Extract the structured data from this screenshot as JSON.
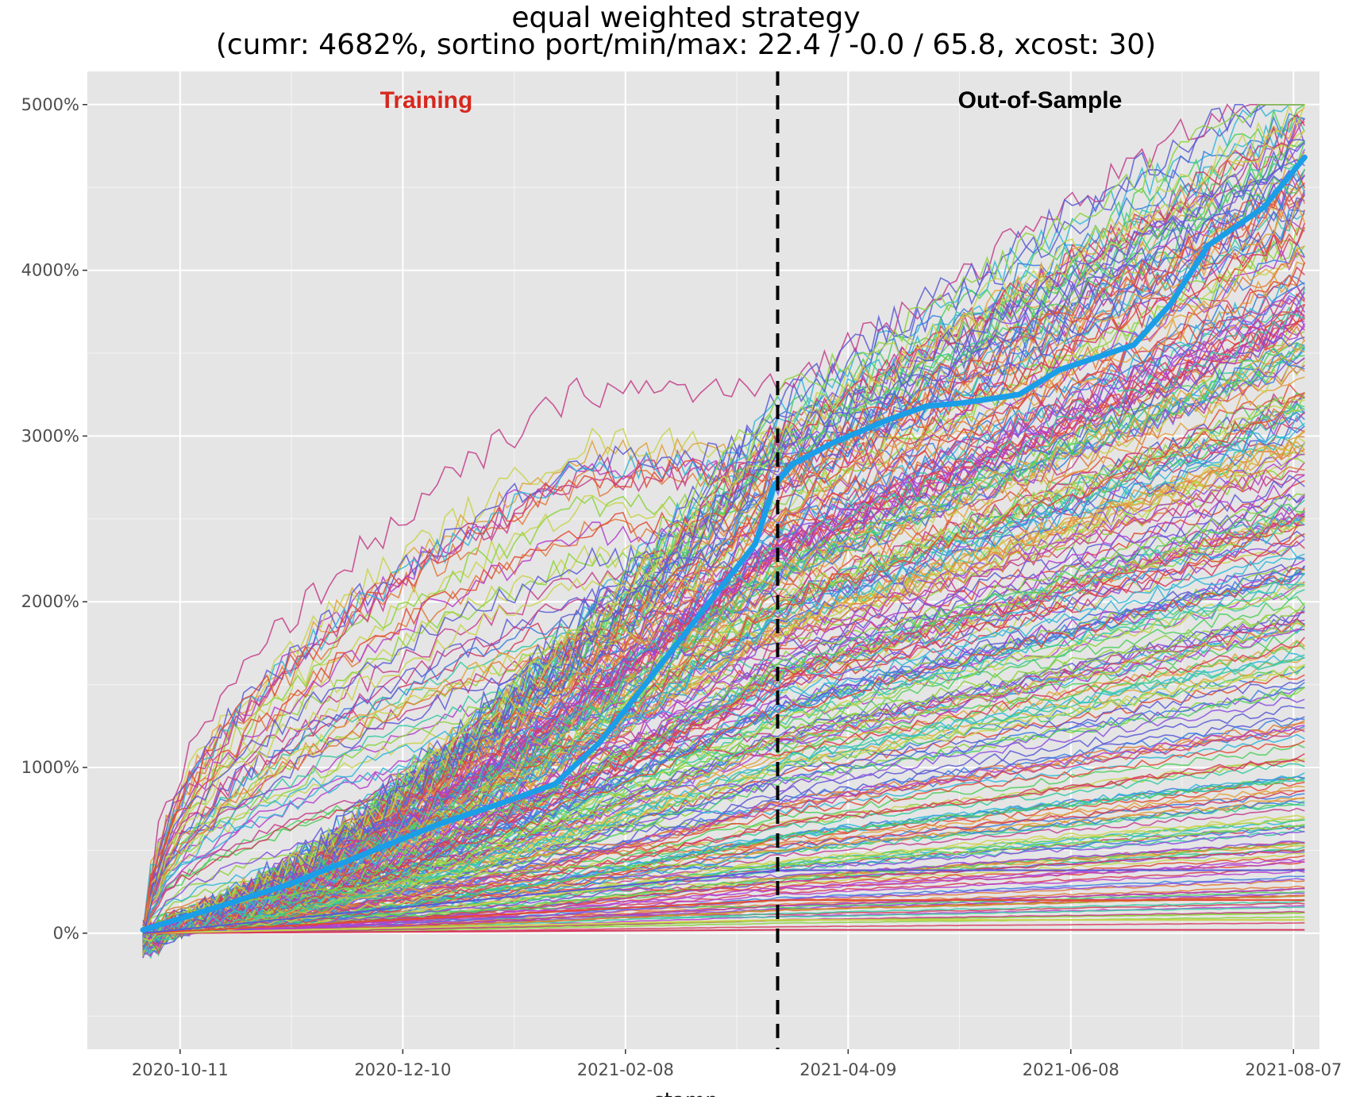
{
  "chart_data": {
    "type": "line",
    "title": "equal weighted strategy",
    "subtitle": "(cumr: 4682%, sortino port/min/max: 22.4 / -0.0 / 65.8, xcost: 30)",
    "xlabel": "stamp",
    "ylabel": "",
    "x_ticks": [
      "2020-10-11",
      "2020-12-10",
      "2021-02-08",
      "2021-04-09",
      "2021-06-08",
      "2021-08-07"
    ],
    "y_ticks": [
      "0%",
      "1000%",
      "2000%",
      "3000%",
      "4000%",
      "5000%"
    ],
    "ylim": [
      -700,
      5200
    ],
    "xlim": [
      "2020-09-16",
      "2021-08-14"
    ],
    "grid": true,
    "background": "#e5e5e5",
    "grid_color": "#ffffff",
    "split_date": "2021-03-21",
    "annotations": {
      "training": {
        "text": "Training",
        "color": "#d7281e"
      },
      "out_of_sample": {
        "text": "Out-of-Sample",
        "color": "#000000"
      }
    },
    "portfolio_series": {
      "color": "#1a9ee8",
      "points": [
        [
          "2020-10-01",
          20
        ],
        [
          "2020-10-20",
          150
        ],
        [
          "2020-11-10",
          300
        ],
        [
          "2020-11-30",
          480
        ],
        [
          "2020-12-20",
          660
        ],
        [
          "2021-01-05",
          780
        ],
        [
          "2021-01-20",
          900
        ],
        [
          "2021-02-01",
          1150
        ],
        [
          "2021-02-15",
          1550
        ],
        [
          "2021-03-01",
          1950
        ],
        [
          "2021-03-15",
          2350
        ],
        [
          "2021-03-20",
          2700
        ],
        [
          "2021-03-25",
          2830
        ],
        [
          "2021-04-05",
          2960
        ],
        [
          "2021-04-20",
          3100
        ],
        [
          "2021-04-30",
          3180
        ],
        [
          "2021-05-10",
          3200
        ],
        [
          "2021-05-25",
          3250
        ],
        [
          "2021-06-05",
          3400
        ],
        [
          "2021-06-25",
          3550
        ],
        [
          "2021-07-05",
          3800
        ],
        [
          "2021-07-15",
          4150
        ],
        [
          "2021-07-30",
          4380
        ],
        [
          "2021-08-10",
          4682
        ]
      ]
    },
    "individual_series_count": 320,
    "series_palette": [
      "#e24a33",
      "#d63a5c",
      "#c43d8a",
      "#b53ecf",
      "#8a4fe0",
      "#5b5bd6",
      "#3a7fe0",
      "#2fb7d8",
      "#34c9a0",
      "#4ccf5a",
      "#8bd43a",
      "#c8d44a",
      "#e0a23a",
      "#e07a3a"
    ]
  }
}
